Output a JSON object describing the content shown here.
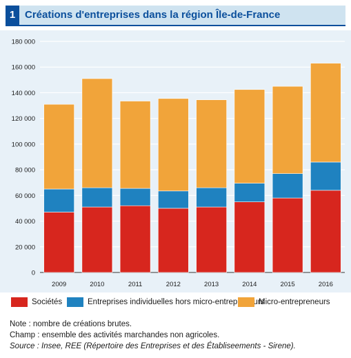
{
  "header": {
    "number": "1",
    "title": "Créations d'entreprises dans la région Île-de-France"
  },
  "chart_data": {
    "type": "bar",
    "stacked": true,
    "categories": [
      "2009",
      "2010",
      "2011",
      "2012",
      "2013",
      "2014",
      "2015",
      "2016"
    ],
    "series": [
      {
        "name": "Sociétés",
        "color": "#d7261e",
        "values": [
          47000,
          51000,
          52000,
          50000,
          51000,
          55000,
          58000,
          64000
        ]
      },
      {
        "name": "Entreprises individuelles hors micro-entrepreneurs",
        "color": "#1f82c0",
        "values": [
          18000,
          15000,
          13500,
          13500,
          15000,
          14500,
          19000,
          22000
        ]
      },
      {
        "name": "Micro-entrepreneurs",
        "color": "#f1a43a",
        "values": [
          66000,
          85000,
          68000,
          72000,
          68500,
          73000,
          68000,
          77000
        ]
      }
    ],
    "ylim": [
      0,
      180000
    ],
    "yticks": [
      "0",
      "20 000",
      "40 000",
      "60 000",
      "80 000",
      "100 000",
      "120 000",
      "140 000",
      "160 000",
      "180 000"
    ],
    "grid": true,
    "legend_position": "bottom",
    "background_color": "#e8f1f8"
  },
  "notes": {
    "note": "Note : nombre de créations brutes.",
    "champ": "Champ : ensemble des activités marchandes non agricoles.",
    "source": "Source : Insee, REE (Répertoire des Entreprises et des Établiseements - Sirene)."
  }
}
